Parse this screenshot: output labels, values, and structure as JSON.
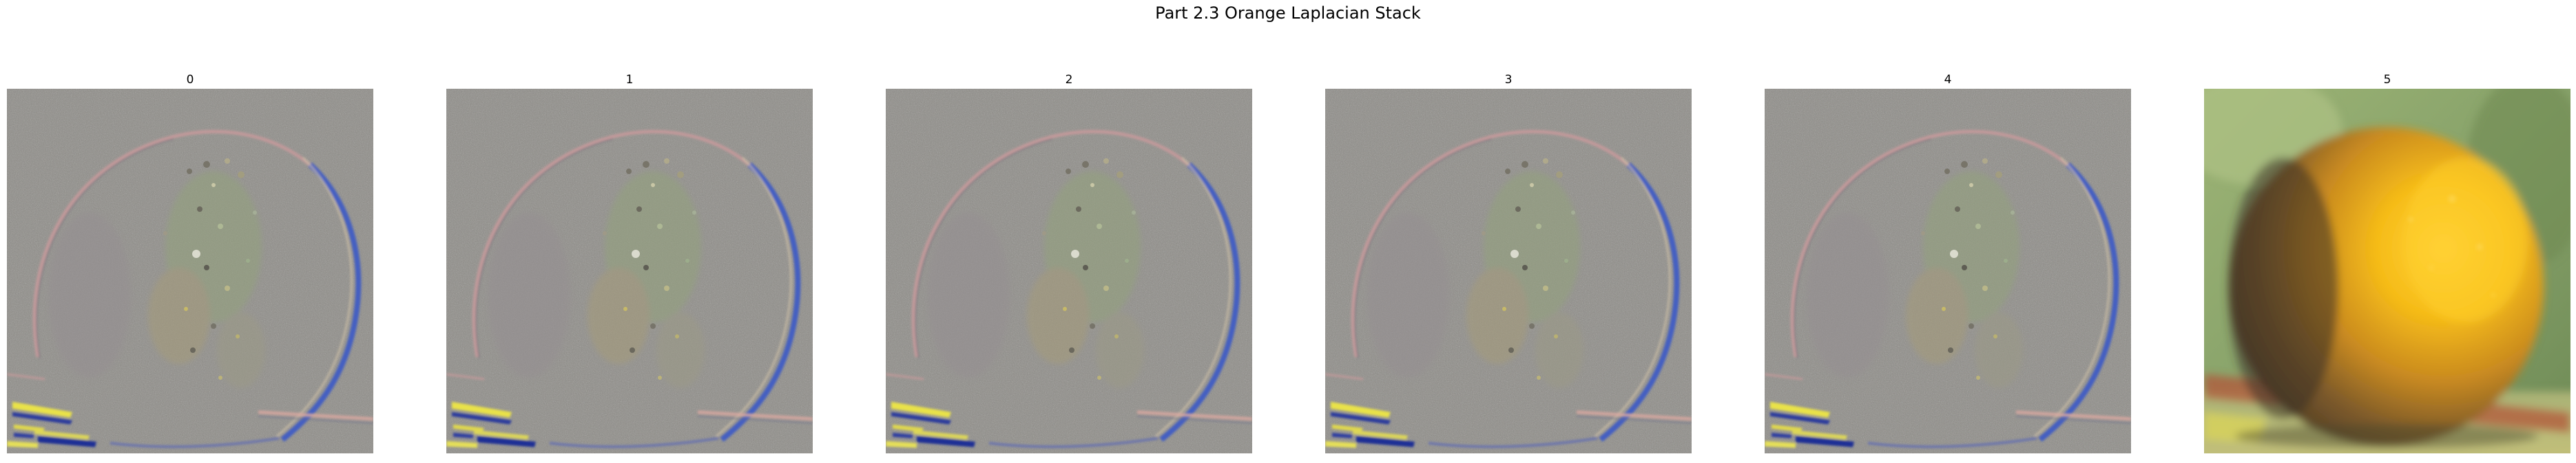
{
  "figure": {
    "title": "Part 2.3 Orange Laplacian Stack"
  },
  "panels": [
    {
      "label": "0",
      "kind": "laplacian-band",
      "edge_strength": 1.0
    },
    {
      "label": "1",
      "kind": "laplacian-band",
      "edge_strength": 1.0
    },
    {
      "label": "2",
      "kind": "laplacian-band",
      "edge_strength": 1.0
    },
    {
      "label": "3",
      "kind": "laplacian-band",
      "edge_strength": 1.0
    },
    {
      "label": "4",
      "kind": "laplacian-band",
      "edge_strength": 1.0
    },
    {
      "label": "5",
      "kind": "low-pass-residual"
    }
  ],
  "colors": {
    "band_gray": "#8e8c87",
    "rim_blue": "#3b59c6",
    "rim_pink": "#c99a9c",
    "orange_bright": "#f6bc18",
    "orange_dark": "#5c4a2c",
    "background_green": "#8faa6b"
  }
}
